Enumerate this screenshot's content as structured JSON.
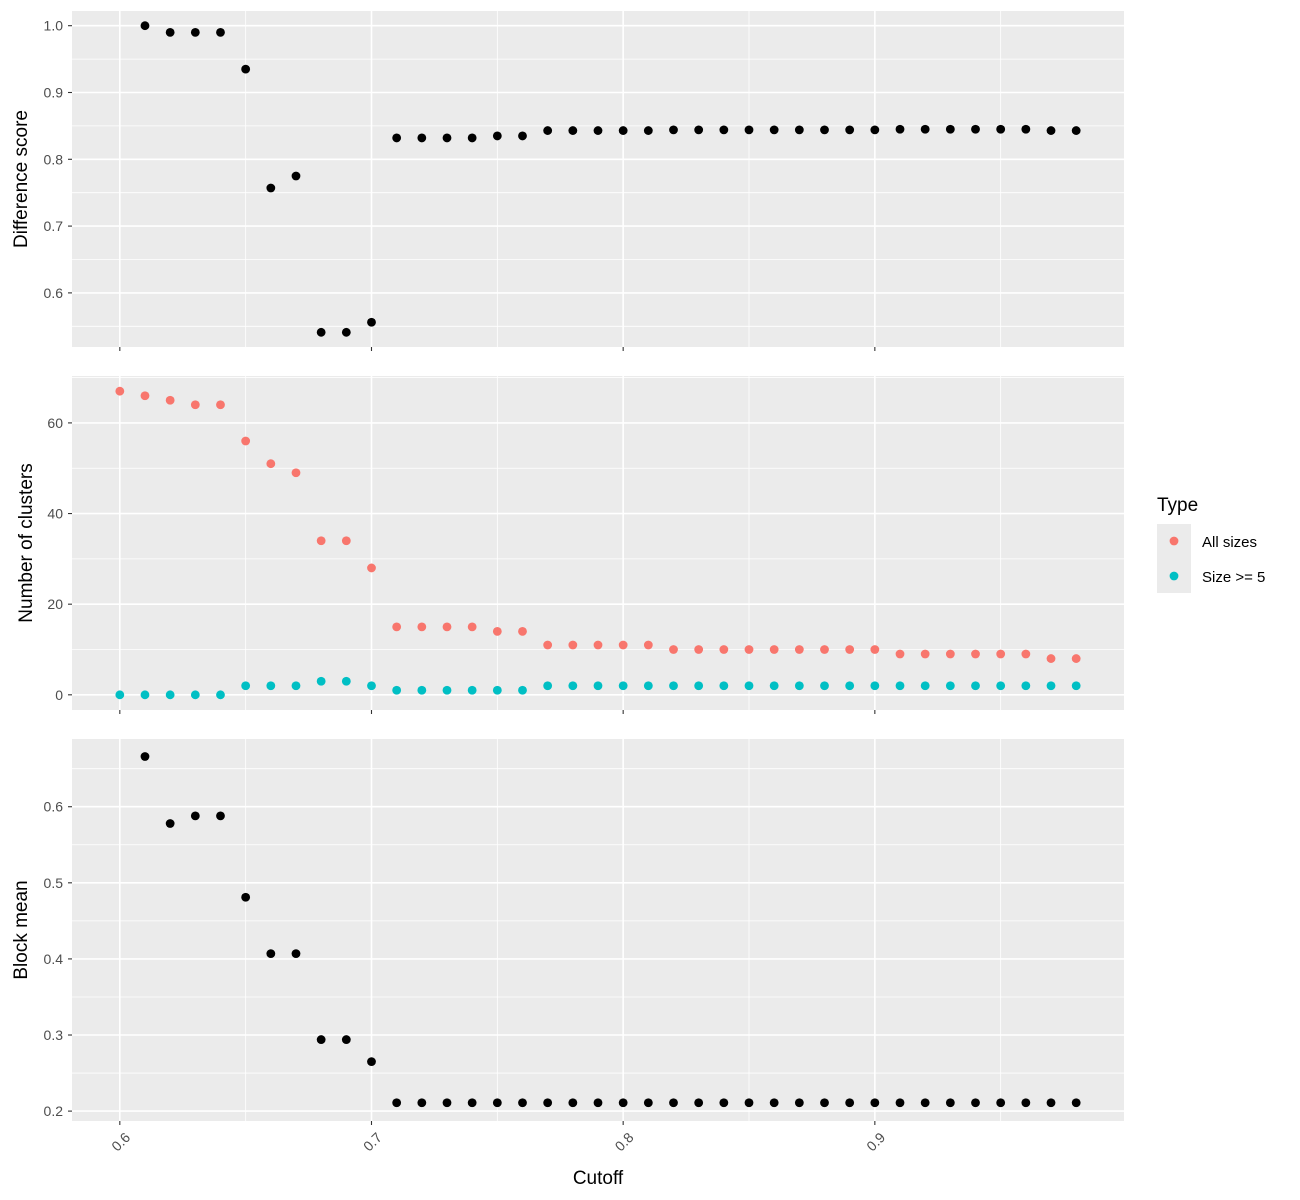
{
  "chart_data": [
    {
      "type": "scatter",
      "panel": "top",
      "xlabel": "",
      "ylabel": "Difference score",
      "xlim": [
        0.581,
        0.999
      ],
      "ylim": [
        0.519,
        1.022
      ],
      "yticks": [
        0.6,
        0.7,
        0.8,
        0.9,
        1.0
      ],
      "ytick_labels": [
        "0.6",
        "0.7",
        "0.8",
        "0.9",
        "1.0"
      ],
      "color": "#000000",
      "x": [
        0.61,
        0.62,
        0.63,
        0.64,
        0.65,
        0.66,
        0.67,
        0.68,
        0.69,
        0.7,
        0.71,
        0.72,
        0.73,
        0.74,
        0.75,
        0.76,
        0.77,
        0.78,
        0.79,
        0.8,
        0.81,
        0.82,
        0.83,
        0.84,
        0.85,
        0.86,
        0.87,
        0.88,
        0.89,
        0.9,
        0.91,
        0.92,
        0.93,
        0.94,
        0.95,
        0.96,
        0.97,
        0.98
      ],
      "y": [
        1.0,
        0.99,
        0.99,
        0.99,
        0.935,
        0.757,
        0.775,
        0.541,
        0.541,
        0.556,
        0.832,
        0.832,
        0.832,
        0.832,
        0.835,
        0.835,
        0.843,
        0.843,
        0.843,
        0.843,
        0.843,
        0.844,
        0.844,
        0.844,
        0.844,
        0.844,
        0.844,
        0.844,
        0.844,
        0.844,
        0.845,
        0.845,
        0.845,
        0.845,
        0.845,
        0.845,
        0.843,
        0.843
      ]
    },
    {
      "type": "scatter",
      "panel": "middle",
      "xlabel": "",
      "ylabel": "Number of clusters",
      "xlim": [
        0.581,
        0.999
      ],
      "ylim": [
        -3.35,
        70.35
      ],
      "yticks": [
        0,
        20,
        40,
        60
      ],
      "ytick_labels": [
        "0",
        "20",
        "40",
        "60"
      ],
      "legend": {
        "title": "Type",
        "position": "right",
        "entries": [
          {
            "label": "All sizes",
            "color": "#F8766D"
          },
          {
            "label": "Size >= 5",
            "color": "#00BFC4"
          }
        ]
      },
      "x": [
        0.6,
        0.61,
        0.62,
        0.63,
        0.64,
        0.65,
        0.66,
        0.67,
        0.68,
        0.69,
        0.7,
        0.71,
        0.72,
        0.73,
        0.74,
        0.75,
        0.76,
        0.77,
        0.78,
        0.79,
        0.8,
        0.81,
        0.82,
        0.83,
        0.84,
        0.85,
        0.86,
        0.87,
        0.88,
        0.89,
        0.9,
        0.91,
        0.92,
        0.93,
        0.94,
        0.95,
        0.96,
        0.97,
        0.98
      ],
      "series": [
        {
          "name": "All sizes",
          "color": "#F8766D",
          "values": [
            67,
            66,
            65,
            64,
            64,
            56,
            51,
            49,
            34,
            34,
            28,
            15,
            15,
            15,
            15,
            14,
            14,
            11,
            11,
            11,
            11,
            11,
            10,
            10,
            10,
            10,
            10,
            10,
            10,
            10,
            10,
            9,
            9,
            9,
            9,
            9,
            9,
            8,
            8
          ]
        },
        {
          "name": "Size >= 5",
          "color": "#00BFC4",
          "values": [
            0,
            0,
            0,
            0,
            0,
            2,
            2,
            2,
            3,
            3,
            2,
            1,
            1,
            1,
            1,
            1,
            1,
            2,
            2,
            2,
            2,
            2,
            2,
            2,
            2,
            2,
            2,
            2,
            2,
            2,
            2,
            2,
            2,
            2,
            2,
            2,
            2,
            2,
            2
          ]
        }
      ]
    },
    {
      "type": "scatter",
      "panel": "bottom",
      "xlabel": "Cutoff",
      "ylabel": "Block mean",
      "xlim": [
        0.581,
        0.999
      ],
      "ylim": [
        0.187,
        0.689
      ],
      "yticks": [
        0.2,
        0.3,
        0.4,
        0.5,
        0.6
      ],
      "ytick_labels": [
        "0.2",
        "0.3",
        "0.4",
        "0.5",
        "0.6"
      ],
      "xticks": [
        0.6,
        0.7,
        0.8,
        0.9
      ],
      "xtick_labels": [
        "0.6",
        "0.7",
        "0.8",
        "0.9"
      ],
      "color": "#000000",
      "x": [
        0.61,
        0.62,
        0.63,
        0.64,
        0.65,
        0.66,
        0.67,
        0.68,
        0.69,
        0.7,
        0.71,
        0.72,
        0.73,
        0.74,
        0.75,
        0.76,
        0.77,
        0.78,
        0.79,
        0.8,
        0.81,
        0.82,
        0.83,
        0.84,
        0.85,
        0.86,
        0.87,
        0.88,
        0.89,
        0.9,
        0.91,
        0.92,
        0.93,
        0.94,
        0.95,
        0.96,
        0.97,
        0.98
      ],
      "y": [
        0.666,
        0.578,
        0.588,
        0.588,
        0.481,
        0.407,
        0.407,
        0.294,
        0.294,
        0.265,
        0.211,
        0.211,
        0.211,
        0.211,
        0.211,
        0.211,
        0.211,
        0.211,
        0.211,
        0.211,
        0.211,
        0.211,
        0.211,
        0.211,
        0.211,
        0.211,
        0.211,
        0.211,
        0.211,
        0.211,
        0.211,
        0.211,
        0.211,
        0.211,
        0.211,
        0.211,
        0.211,
        0.211
      ]
    }
  ]
}
